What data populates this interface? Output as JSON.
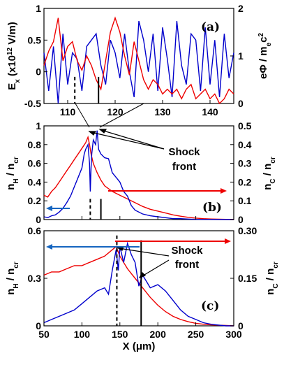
{
  "chart_data": [
    {
      "panel": "(a)",
      "type": "line",
      "xlim": [
        105,
        145
      ],
      "ylim": [
        -0.5,
        1
      ],
      "y2lim": [
        0,
        2
      ],
      "xticks": [
        "110",
        "120",
        "130",
        "140"
      ],
      "yticks": [
        "-0.5",
        "0",
        "0.5",
        "1"
      ],
      "y2ticks": [
        "0",
        "1",
        "2"
      ],
      "dashed_marker_x": 111.5,
      "solid_marker_x": 116.5,
      "series": [
        {
          "axis": "left",
          "color": "#0000cc",
          "x": [
            105,
            106,
            107,
            108,
            109,
            110,
            111,
            112,
            113,
            114,
            115,
            116,
            117,
            118,
            119,
            120,
            121,
            122,
            123,
            124,
            125,
            126,
            127,
            128,
            129,
            130,
            131,
            132,
            133,
            134,
            135,
            136,
            137,
            138,
            139,
            140,
            141,
            142,
            143,
            144,
            145
          ],
          "y": [
            0.3,
            -0.3,
            0.4,
            -0.5,
            0.6,
            -0.2,
            0.3,
            0.2,
            -0.3,
            0.4,
            0.5,
            0.6,
            0.1,
            -0.2,
            0.5,
            0.3,
            -0.1,
            0.6,
            0.0,
            -0.4,
            0.8,
            0.5,
            0.0,
            0.6,
            -0.3,
            0.7,
            0.2,
            -0.4,
            0.8,
            0.1,
            -0.2,
            0.6,
            0.5,
            -0.3,
            0.7,
            -0.2,
            0.5,
            -0.4,
            0.6,
            -0.1,
            0.3
          ]
        },
        {
          "axis": "right",
          "color": "#ee0000",
          "x": [
            105,
            106,
            107,
            108,
            109,
            110,
            111,
            112,
            113,
            114,
            115,
            116,
            117,
            118,
            119,
            120,
            121,
            122,
            123,
            124,
            125,
            126,
            127,
            128,
            129,
            130,
            131,
            132,
            133,
            134,
            135,
            136,
            137,
            138,
            139,
            140,
            141,
            142,
            143,
            144,
            145
          ],
          "y": [
            0.8,
            1.1,
            1.3,
            1.8,
            0.9,
            1.2,
            1.3,
            0.9,
            0.7,
            1.0,
            0.8,
            0.5,
            0.3,
            0.9,
            1.5,
            1.8,
            1.5,
            1.0,
            0.6,
            1.3,
            0.9,
            0.5,
            0.3,
            0.5,
            0.4,
            0.2,
            0.3,
            0.2,
            0.3,
            0.1,
            0.3,
            0.4,
            0.1,
            0.2,
            0.3,
            0.1,
            0.2,
            0.0,
            0.1,
            0.3,
            0.2
          ]
        }
      ],
      "ylabel_left": "E",
      "ylabel_left_sub": "x",
      "ylabel_left_units": " (x10",
      "ylabel_left_exp": "12",
      "ylabel_left_tail": " V/m)",
      "ylabel_right": "eΦ / m",
      "ylabel_right_sub": "e",
      "ylabel_right_tail": "c",
      "ylabel_right_exp": "2"
    },
    {
      "panel": "(b)",
      "type": "line",
      "xlim": [
        50,
        300
      ],
      "ylim": [
        0,
        1
      ],
      "y2lim": [
        0,
        0.5
      ],
      "yticks": [
        "0",
        "0.2",
        "0.4",
        "0.6",
        "0.8",
        "1"
      ],
      "y2ticks": [
        "0",
        "0.1",
        "0.2",
        "0.3",
        "0.4",
        "0.5"
      ],
      "dashed_marker_x": 111,
      "solid_marker_x": 125,
      "series": [
        {
          "axis": "right",
          "color": "#ee0000",
          "x": [
            50,
            55,
            60,
            65,
            70,
            75,
            80,
            85,
            90,
            95,
            100,
            105,
            108,
            110,
            112,
            115,
            120,
            125,
            130,
            140,
            150,
            160,
            170,
            180,
            190,
            200,
            210,
            220,
            230,
            240,
            250,
            260,
            270,
            280,
            290,
            300
          ],
          "y": [
            0.13,
            0.12,
            0.15,
            0.17,
            0.2,
            0.23,
            0.26,
            0.29,
            0.32,
            0.35,
            0.38,
            0.41,
            0.44,
            0.4,
            0.35,
            0.3,
            0.25,
            0.21,
            0.18,
            0.15,
            0.13,
            0.11,
            0.09,
            0.07,
            0.055,
            0.045,
            0.035,
            0.025,
            0.018,
            0.012,
            0.008,
            0.005,
            0.003,
            0.002,
            0.001,
            0.0
          ]
        },
        {
          "axis": "left",
          "color": "#0000cc",
          "x": [
            50,
            55,
            60,
            65,
            70,
            75,
            80,
            85,
            90,
            95,
            100,
            103,
            105,
            108,
            110,
            111,
            112,
            113,
            115,
            118,
            120,
            122,
            125,
            130,
            135,
            140,
            145,
            150,
            155,
            160,
            165,
            170,
            180,
            190,
            200,
            210,
            220,
            230,
            240,
            250,
            300
          ],
          "y": [
            0.03,
            0.02,
            0.04,
            0.05,
            0.08,
            0.12,
            0.18,
            0.25,
            0.35,
            0.45,
            0.55,
            0.7,
            0.75,
            0.8,
            0.6,
            0.3,
            0.55,
            0.7,
            0.85,
            0.8,
            0.95,
            0.75,
            0.7,
            0.66,
            0.65,
            0.5,
            0.45,
            0.4,
            0.3,
            0.25,
            0.15,
            0.1,
            0.06,
            0.04,
            0.03,
            0.02,
            0.01,
            0.01,
            0.005,
            0.002,
            0.0
          ]
        }
      ],
      "ylabel_left": "n",
      "ylabel_left_sub": "H",
      "ylabel_left_tail": " / n",
      "ylabel_left_sub2": "cr",
      "ylabel_right": "n",
      "ylabel_right_sub": "C",
      "ylabel_right_tail": " / n",
      "ylabel_right_sub2": "cr",
      "annotation": "Shock front",
      "annotation_line1": "Shock",
      "annotation_line2": "front"
    },
    {
      "panel": "(c)",
      "type": "line",
      "xlim": [
        50,
        300
      ],
      "ylim": [
        0,
        0.6
      ],
      "y2lim": [
        0,
        0.3
      ],
      "xticks": [
        "50",
        "100",
        "150",
        "200",
        "250",
        "300"
      ],
      "yticks": [
        "0",
        "0.3",
        "0.6"
      ],
      "y2ticks": [
        "0",
        "0.15",
        "0.30"
      ],
      "dashed_marker_x": 146,
      "solid_marker_x": 178,
      "series": [
        {
          "axis": "right",
          "color": "#ee0000",
          "x": [
            50,
            60,
            70,
            80,
            90,
            100,
            110,
            120,
            130,
            140,
            145,
            150,
            155,
            160,
            170,
            180,
            190,
            200,
            210,
            220,
            230,
            240,
            250,
            260,
            270,
            280,
            290,
            300
          ],
          "y": [
            0.16,
            0.17,
            0.17,
            0.18,
            0.19,
            0.19,
            0.2,
            0.21,
            0.22,
            0.24,
            0.25,
            0.22,
            0.2,
            0.18,
            0.15,
            0.12,
            0.09,
            0.065,
            0.045,
            0.03,
            0.02,
            0.013,
            0.008,
            0.005,
            0.003,
            0.002,
            0.001,
            0.0
          ]
        },
        {
          "axis": "left",
          "color": "#0000cc",
          "x": [
            50,
            60,
            70,
            80,
            90,
            100,
            110,
            120,
            130,
            135,
            140,
            145,
            148,
            150,
            155,
            160,
            165,
            170,
            175,
            180,
            185,
            190,
            200,
            210,
            220,
            230,
            240,
            250,
            260,
            270,
            280,
            290,
            300
          ],
          "y": [
            0.02,
            0.04,
            0.06,
            0.08,
            0.1,
            0.14,
            0.18,
            0.22,
            0.24,
            0.2,
            0.35,
            0.48,
            0.35,
            0.5,
            0.4,
            0.52,
            0.45,
            0.4,
            0.25,
            0.32,
            0.28,
            0.24,
            0.26,
            0.22,
            0.16,
            0.1,
            0.06,
            0.04,
            0.02,
            0.01,
            0.005,
            0.0,
            0.0
          ]
        }
      ],
      "ylabel_left": "n",
      "ylabel_left_sub": "H",
      "ylabel_left_tail": " / n",
      "ylabel_left_sub2": "cr",
      "ylabel_right": "n",
      "ylabel_right_sub": "C",
      "ylabel_right_tail": " / n",
      "ylabel_right_sub2": "cr",
      "annotation_line1": "Shock",
      "annotation_line2": "front",
      "xlabel": "X (μm)"
    }
  ]
}
